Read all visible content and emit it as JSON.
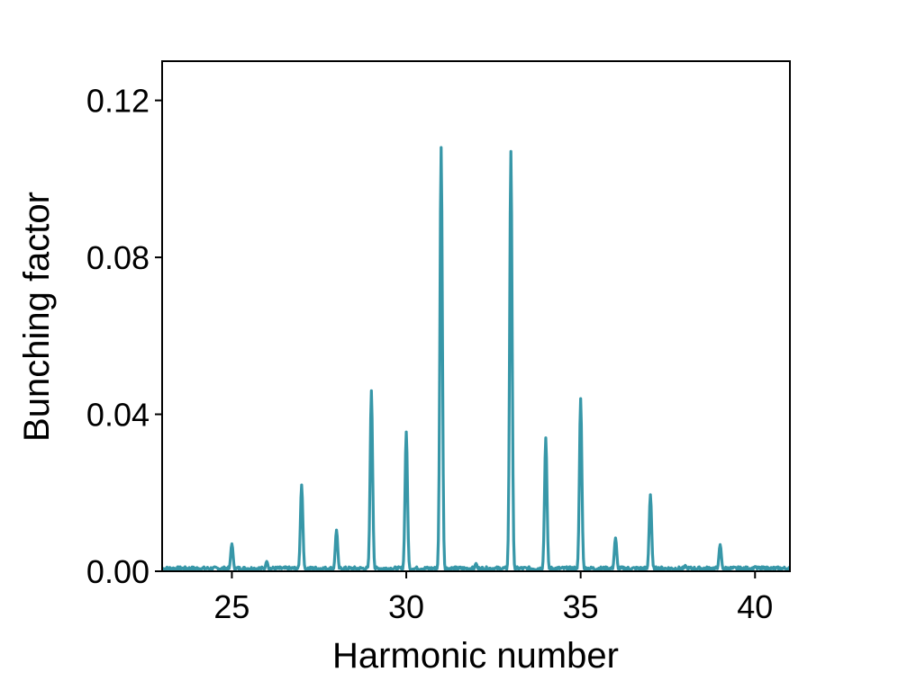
{
  "chart_data": {
    "type": "line",
    "title": "",
    "xlabel": "Harmonic number",
    "ylabel": "Bunching factor",
    "xlim": [
      23.0,
      41.0
    ],
    "ylim": [
      0.0,
      0.13
    ],
    "xticks": [
      25,
      30,
      35,
      40
    ],
    "xtick_labels": [
      "25",
      "30",
      "35",
      "40"
    ],
    "yticks": [
      0.0,
      0.04,
      0.08,
      0.12
    ],
    "ytick_labels": [
      "0.00",
      "0.04",
      "0.08",
      "0.12"
    ],
    "grid": false,
    "line_color": "#3797a8",
    "peaks": [
      {
        "x": 25,
        "y": 0.007
      },
      {
        "x": 26,
        "y": 0.0025
      },
      {
        "x": 27,
        "y": 0.022
      },
      {
        "x": 28,
        "y": 0.0105
      },
      {
        "x": 29,
        "y": 0.046
      },
      {
        "x": 30,
        "y": 0.0355
      },
      {
        "x": 31,
        "y": 0.108
      },
      {
        "x": 32,
        "y": 0.002
      },
      {
        "x": 33,
        "y": 0.107
      },
      {
        "x": 34,
        "y": 0.034
      },
      {
        "x": 35,
        "y": 0.044
      },
      {
        "x": 36,
        "y": 0.0085
      },
      {
        "x": 37,
        "y": 0.0195
      },
      {
        "x": 38,
        "y": 0.0015
      },
      {
        "x": 39,
        "y": 0.0068
      },
      {
        "x": 40,
        "y": 0.0012
      }
    ],
    "baseline_noise": 0.001
  }
}
